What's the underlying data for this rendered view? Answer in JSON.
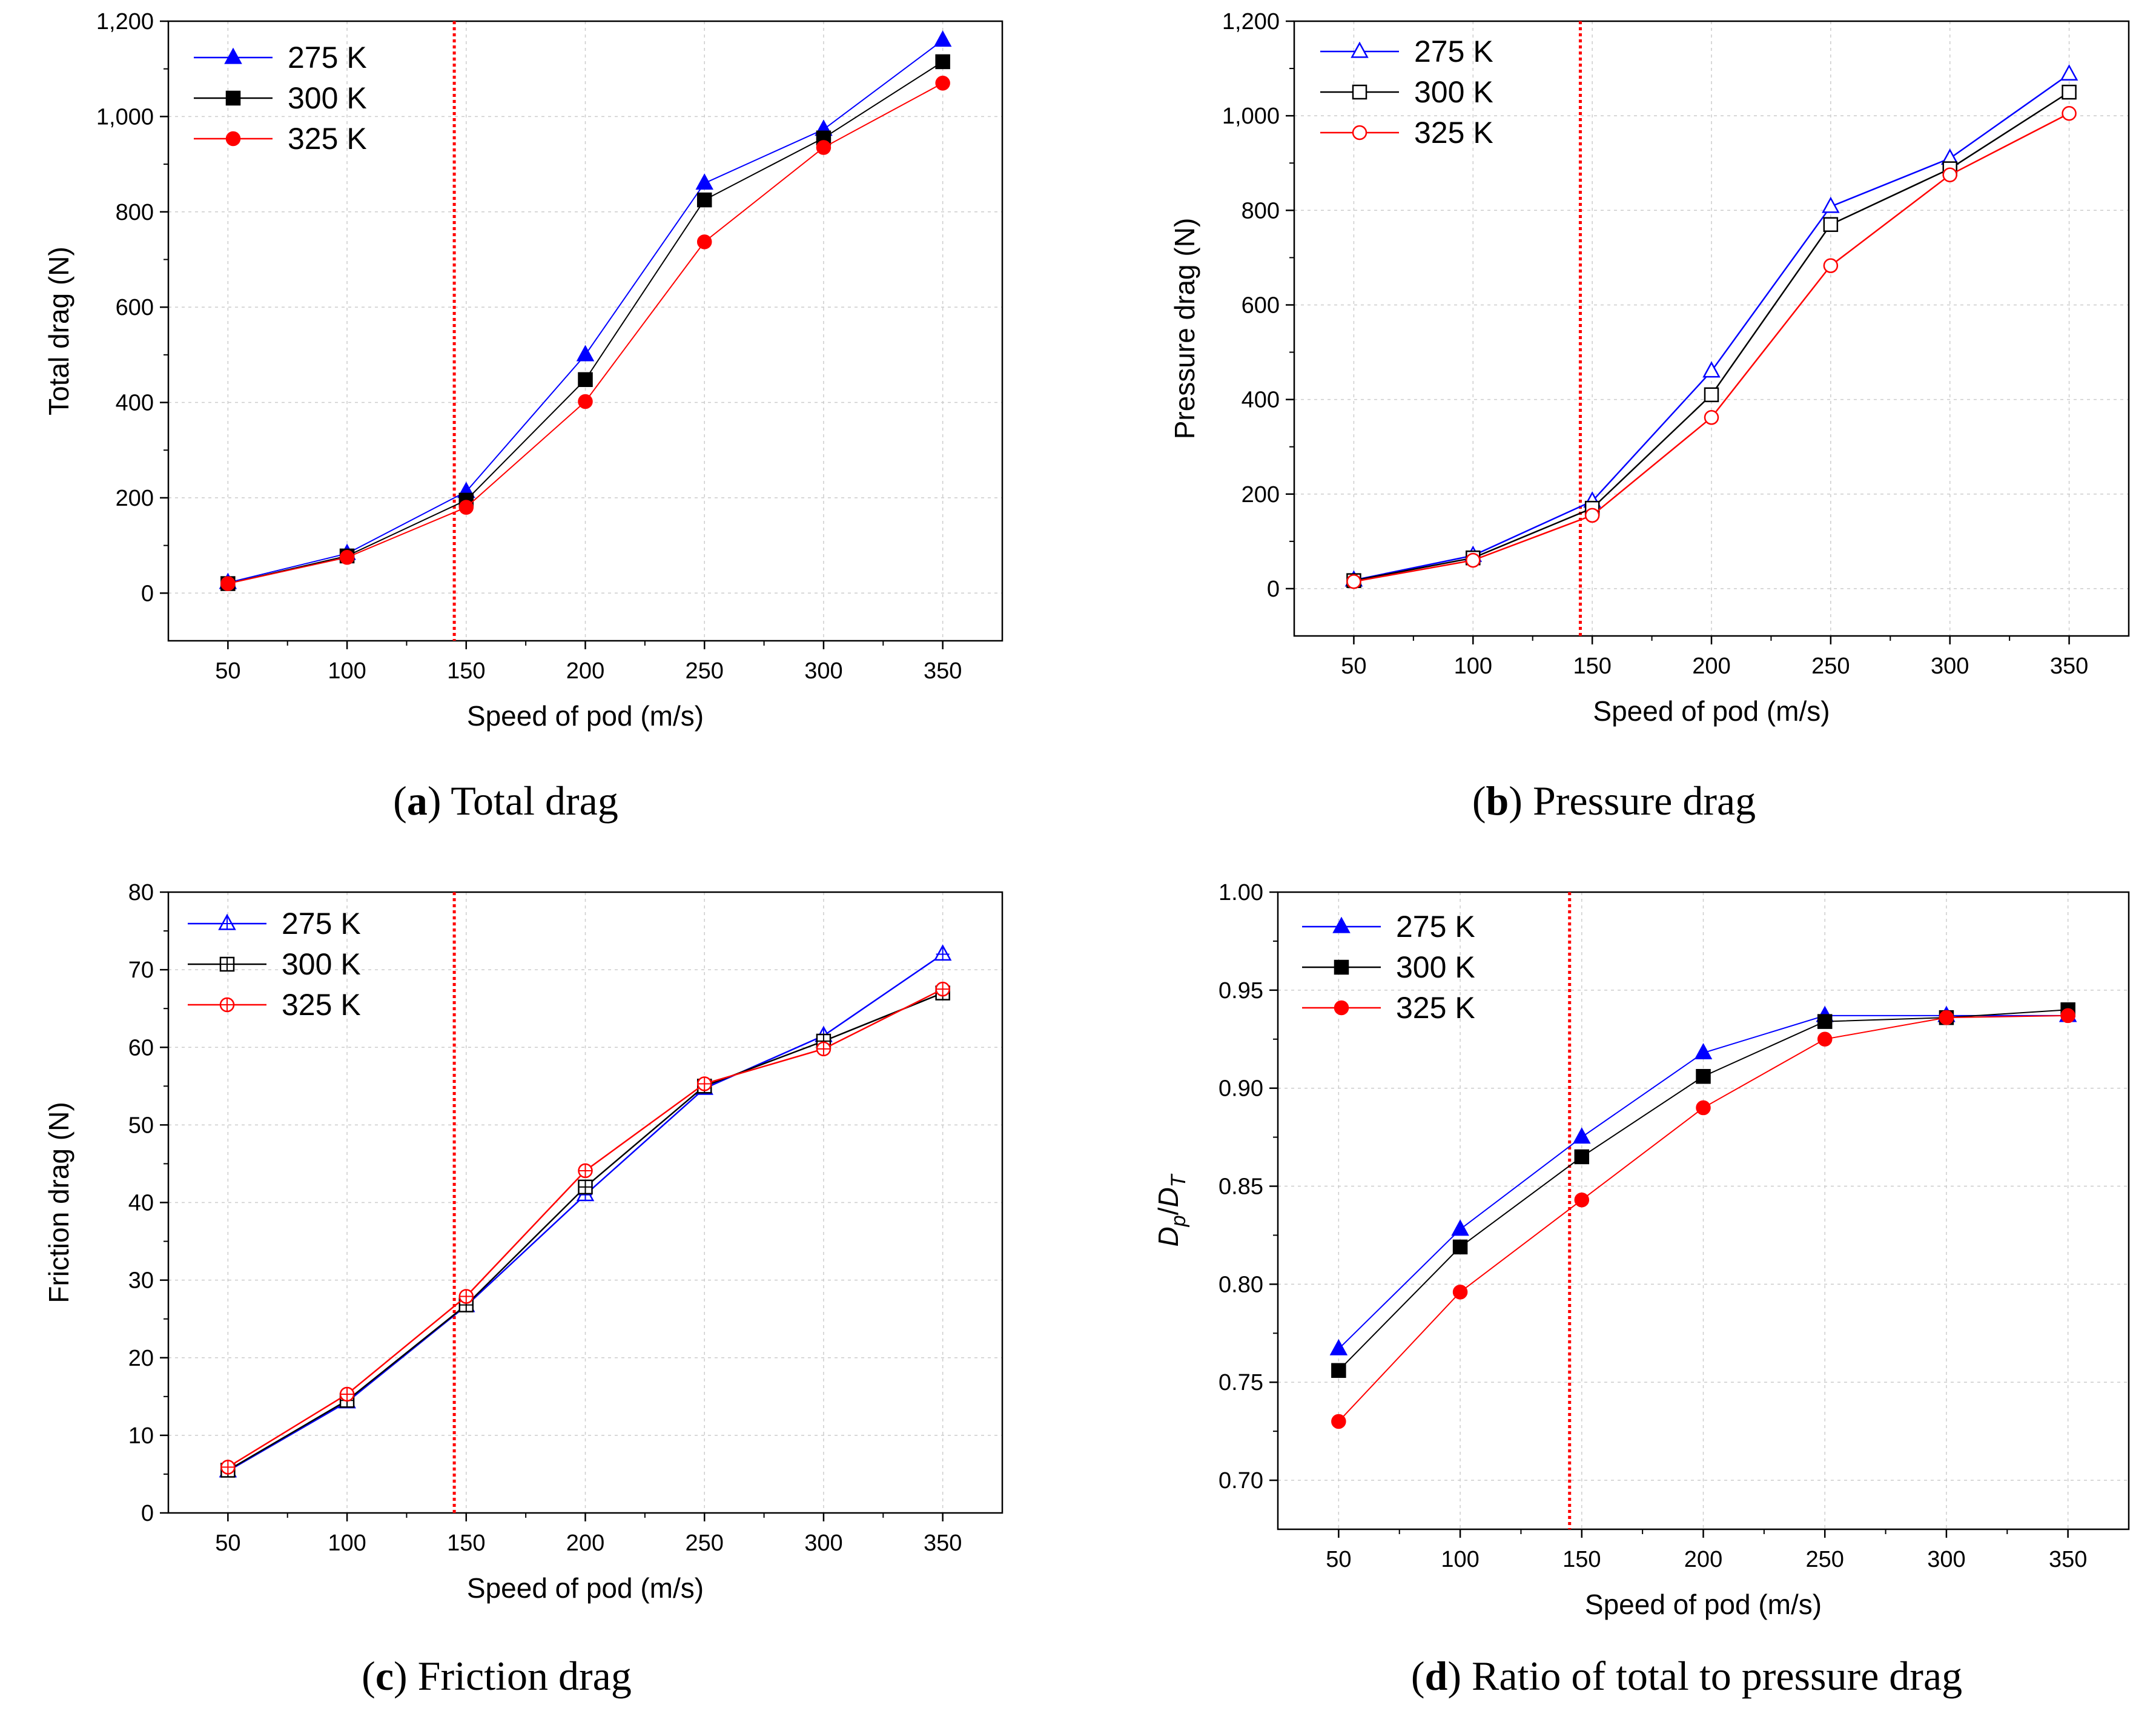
{
  "figure": {
    "panels": [
      {
        "caption_letter": "a",
        "caption_text": "Total drag"
      },
      {
        "caption_letter": "b",
        "caption_text": "Pressure drag"
      },
      {
        "caption_letter": "c",
        "caption_text": "Friction drag"
      },
      {
        "caption_letter": "d",
        "caption_text": "Ratio of total to pressure drag"
      }
    ]
  },
  "colors": {
    "t275": "#0000ff",
    "t300": "#000000",
    "t325": "#ff0000",
    "vline": "#ff0000",
    "grid": "#cccccc"
  },
  "chart_data": [
    {
      "type": "line",
      "title": "Total drag",
      "xlabel": "Speed of pod (m/s)",
      "ylabel": "Total drag (N)",
      "xlim": [
        25,
        375
      ],
      "ylim": [
        -100,
        1200
      ],
      "xticks": [
        50,
        100,
        150,
        200,
        250,
        300,
        350
      ],
      "xtick_labels": [
        "50",
        "100",
        "150",
        "200",
        "250",
        "300",
        "350"
      ],
      "yticks": [
        0,
        200,
        400,
        600,
        800,
        1000,
        1200
      ],
      "ytick_labels": [
        "0",
        "200",
        "400",
        "600",
        "800",
        "1,000",
        "1,200"
      ],
      "vline_x": 145,
      "legend_position": "top-left",
      "marker_fill": "filled",
      "x": [
        50,
        100,
        150,
        200,
        250,
        300,
        350
      ],
      "series": [
        {
          "name": "275 K",
          "key": "t275",
          "marker": "triangle",
          "values": [
            22,
            83,
            213,
            500,
            860,
            973,
            1160
          ]
        },
        {
          "name": "300 K",
          "key": "t300",
          "marker": "square",
          "values": [
            20,
            78,
            195,
            448,
            825,
            955,
            1115
          ]
        },
        {
          "name": "325 K",
          "key": "t325",
          "marker": "circle",
          "values": [
            20,
            75,
            180,
            402,
            737,
            935,
            1070
          ]
        }
      ]
    },
    {
      "type": "line",
      "title": "Pressure drag",
      "xlabel": "Speed of pod (m/s)",
      "ylabel": "Pressure drag (N)",
      "xlim": [
        25,
        375
      ],
      "ylim": [
        -100,
        1200
      ],
      "xticks": [
        50,
        100,
        150,
        200,
        250,
        300,
        350
      ],
      "xtick_labels": [
        "50",
        "100",
        "150",
        "200",
        "250",
        "300",
        "350"
      ],
      "yticks": [
        0,
        200,
        400,
        600,
        800,
        1000,
        1200
      ],
      "ytick_labels": [
        "0",
        "200",
        "400",
        "600",
        "800",
        "1,000",
        "1,200"
      ],
      "vline_x": 145,
      "legend_position": "top-left",
      "marker_fill": "hollow",
      "x": [
        50,
        100,
        150,
        200,
        250,
        300,
        350
      ],
      "series": [
        {
          "name": "275 K",
          "key": "t275",
          "marker": "triangle",
          "values": [
            18,
            70,
            185,
            460,
            808,
            910,
            1088
          ]
        },
        {
          "name": "300 K",
          "key": "t300",
          "marker": "square",
          "values": [
            17,
            65,
            170,
            410,
            770,
            888,
            1050
          ]
        },
        {
          "name": "325 K",
          "key": "t325",
          "marker": "circle",
          "values": [
            15,
            60,
            155,
            362,
            683,
            875,
            1005
          ]
        }
      ]
    },
    {
      "type": "line",
      "title": "Friction drag",
      "xlabel": "Speed of pod (m/s)",
      "ylabel": "Friction drag (N)",
      "xlim": [
        25,
        375
      ],
      "ylim": [
        0,
        80
      ],
      "xticks": [
        50,
        100,
        150,
        200,
        250,
        300,
        350
      ],
      "xtick_labels": [
        "50",
        "100",
        "150",
        "200",
        "250",
        "300",
        "350"
      ],
      "yticks": [
        0,
        10,
        20,
        30,
        40,
        50,
        60,
        70,
        80
      ],
      "ytick_labels": [
        "0",
        "10",
        "20",
        "30",
        "40",
        "50",
        "60",
        "70",
        "80"
      ],
      "vline_x": 145,
      "legend_position": "top-left",
      "marker_fill": "crossed",
      "x": [
        50,
        100,
        150,
        200,
        250,
        300,
        350
      ],
      "series": [
        {
          "name": "275 K",
          "key": "t275",
          "marker": "triangle",
          "values": [
            5.4,
            14.3,
            26.7,
            41.0,
            54.7,
            61.5,
            72.0
          ]
        },
        {
          "name": "300 K",
          "key": "t300",
          "marker": "square",
          "values": [
            5.5,
            14.5,
            26.8,
            42.0,
            55.0,
            60.8,
            67.0
          ]
        },
        {
          "name": "325 K",
          "key": "t325",
          "marker": "circle",
          "values": [
            5.9,
            15.3,
            27.9,
            44.1,
            55.3,
            59.8,
            67.5
          ]
        }
      ]
    },
    {
      "type": "line",
      "title": "Ratio of total to pressure drag",
      "xlabel": "Speed of pod (m/s)",
      "ylabel": "Dp/DT",
      "ylabel_main1": "D",
      "ylabel_sub1": "p",
      "ylabel_slash": "/",
      "ylabel_main2": "D",
      "ylabel_sub2": "T",
      "xlim": [
        25,
        375
      ],
      "ylim": [
        0.675,
        1.0
      ],
      "xticks": [
        50,
        100,
        150,
        200,
        250,
        300,
        350
      ],
      "xtick_labels": [
        "50",
        "100",
        "150",
        "200",
        "250",
        "300",
        "350"
      ],
      "yticks": [
        0.7,
        0.75,
        0.8,
        0.85,
        0.9,
        0.95,
        1.0
      ],
      "ytick_labels": [
        "0.70",
        "0.75",
        "0.80",
        "0.85",
        "0.90",
        "0.95",
        "1.00"
      ],
      "vline_x": 145,
      "legend_position": "top-left",
      "marker_fill": "filled",
      "x": [
        50,
        100,
        150,
        200,
        250,
        300,
        350
      ],
      "series": [
        {
          "name": "275 K",
          "key": "t275",
          "marker": "triangle",
          "values": [
            0.767,
            0.828,
            0.875,
            0.918,
            0.937,
            0.937,
            0.937
          ]
        },
        {
          "name": "300 K",
          "key": "t300",
          "marker": "square",
          "values": [
            0.756,
            0.819,
            0.865,
            0.906,
            0.934,
            0.936,
            0.94
          ]
        },
        {
          "name": "325 K",
          "key": "t325",
          "marker": "circle",
          "values": [
            0.73,
            0.796,
            0.843,
            0.89,
            0.925,
            0.936,
            0.937
          ]
        }
      ]
    }
  ]
}
